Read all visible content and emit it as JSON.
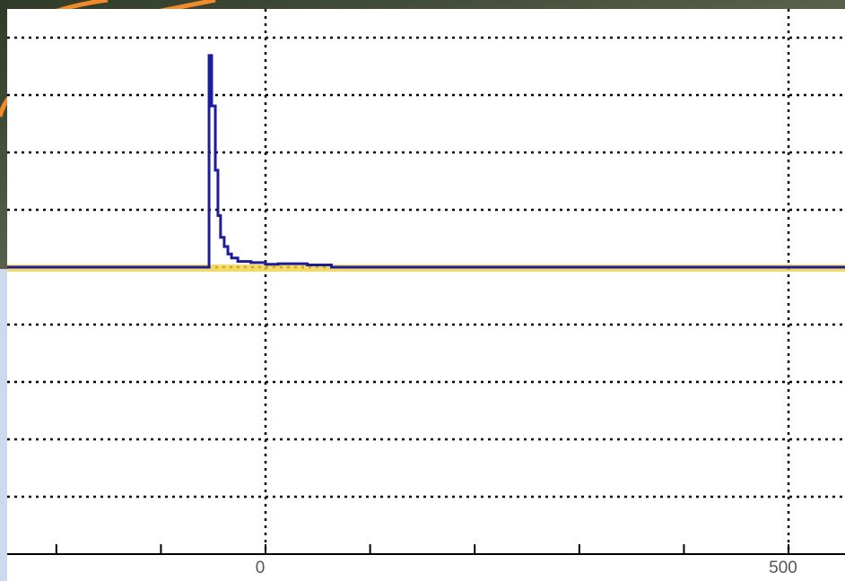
{
  "chart_data": {
    "type": "line",
    "step": "post",
    "x": [
      -247,
      -54,
      -51.5,
      -48,
      -45.5,
      -43,
      -39.5,
      -36,
      -32.5,
      -26.5,
      -14,
      0,
      12,
      40,
      63,
      554
    ],
    "series": [
      {
        "color": "#1c1c9c",
        "values": [
          0,
          3.69,
          2.81,
          1.69,
          0.9,
          0.52,
          0.36,
          0.23,
          0.16,
          0.1,
          0.08,
          0.05,
          0.06,
          0.04,
          0,
          0
        ]
      }
    ],
    "xlim": [
      -247,
      554
    ],
    "ylim": [
      -5,
      4.5
    ],
    "xticks": [
      0,
      500
    ],
    "xminor_ticks": [
      -200,
      -100,
      100,
      200,
      300,
      400
    ],
    "yticks": [
      -4,
      -3,
      -2,
      -1,
      0,
      1,
      2,
      3,
      4
    ],
    "grid": true,
    "grid_style": "dotted",
    "baseline_color": "#f2d23a"
  }
}
